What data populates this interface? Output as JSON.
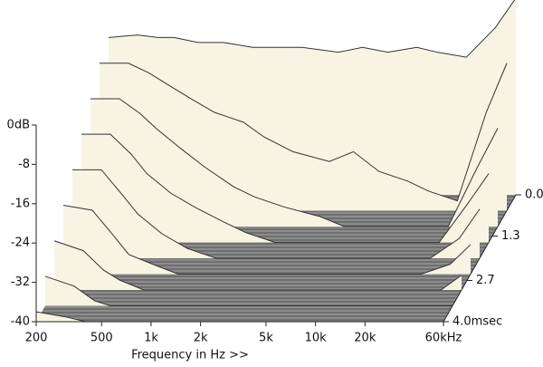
{
  "chart_data": {
    "type": "waterfall",
    "x_label": "Frequency in Hz >>",
    "x_log": true,
    "xlim": [
      200,
      60000
    ],
    "xticks": [
      200,
      500,
      {
        "value": 1000,
        "label": "1k"
      },
      {
        "value": 2000,
        "label": "2k"
      },
      {
        "value": 5000,
        "label": "5k"
      },
      {
        "value": 10000,
        "label": "10k"
      },
      {
        "value": 20000,
        "label": "20k"
      },
      {
        "value": 60000,
        "label": "60kHz"
      }
    ],
    "ylim": [
      -40,
      0
    ],
    "yticks": [
      {
        "value": 0,
        "label": "0dB"
      },
      -8,
      -16,
      -24,
      -32,
      -40
    ],
    "zlim": [
      0,
      4
    ],
    "zticks": [
      {
        "value": 0,
        "label": "0.0"
      },
      1.3,
      2.7,
      {
        "value": 4,
        "label": "4.0msec"
      }
    ],
    "color": "#f7f4e4",
    "line_color": "#333333",
    "floor_color": "#8c8c8c",
    "x": [
      200,
      300,
      400,
      500,
      700,
      1000,
      1500,
      2000,
      3000,
      5000,
      7000,
      10000,
      15000,
      20000,
      30000,
      45000,
      60000
    ],
    "series": [
      {
        "time": 0,
        "values": [
          -8,
          -7.5,
          -8,
          -8,
          -9,
          -9,
          -10,
          -10,
          -10,
          -11,
          -10,
          -11,
          -10,
          -11,
          -12,
          -6,
          0
        ]
      },
      {
        "time": 0.5,
        "values": [
          -10,
          -10,
          -12,
          -14,
          -17,
          -20,
          -22,
          -25,
          -28,
          -30,
          -28,
          -32,
          -34,
          -36,
          -38,
          -20,
          -10
        ]
      },
      {
        "time": 1,
        "values": [
          -14,
          -14,
          -17,
          -20,
          -24,
          -28,
          -32,
          -34,
          -36,
          -38,
          -40,
          -40,
          -40,
          -40,
          -40,
          -28,
          -20
        ]
      },
      {
        "time": 1.5,
        "values": [
          -18,
          -18,
          -22,
          -26,
          -30,
          -33,
          -36,
          -38,
          -40,
          -40,
          -40,
          -40,
          -40,
          -40,
          -40,
          -32,
          -26
        ]
      },
      {
        "time": 2,
        "values": [
          -22,
          -22,
          -27,
          -31,
          -35,
          -38,
          -40,
          -40,
          -40,
          -40,
          -40,
          -40,
          -40,
          -40,
          -40,
          -36,
          -30
        ]
      },
      {
        "time": 2.5,
        "values": [
          -26,
          -27,
          -32,
          -36,
          -38,
          -40,
          -40,
          -40,
          -40,
          -40,
          -40,
          -40,
          -40,
          -40,
          -40,
          -38,
          -34
        ]
      },
      {
        "time": 3,
        "values": [
          -30,
          -32,
          -36,
          -38,
          -40,
          -40,
          -40,
          -40,
          -40,
          -40,
          -40,
          -40,
          -40,
          -40,
          -40,
          -40,
          -37
        ]
      },
      {
        "time": 3.5,
        "values": [
          -34,
          -36,
          -39,
          -40,
          -40,
          -40,
          -40,
          -40,
          -40,
          -40,
          -40,
          -40,
          -40,
          -40,
          -40,
          -40,
          -40
        ]
      },
      {
        "time": 4,
        "values": [
          -38,
          -39,
          -40,
          -40,
          -40,
          -40,
          -40,
          -40,
          -40,
          -40,
          -40,
          -40,
          -40,
          -40,
          -40,
          -40,
          -40
        ]
      }
    ]
  }
}
